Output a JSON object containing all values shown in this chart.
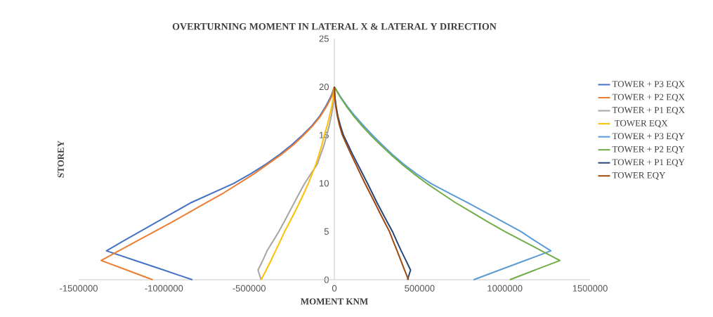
{
  "chart_data": {
    "type": "line",
    "title": "OVERTURNING MOMENT IN LATERAL X & LATERAL Y DIRECTION",
    "xlabel": "MOMENT KNM",
    "ylabel": "STOREY",
    "xlim": [
      -1500000,
      1500000
    ],
    "ylim": [
      0,
      25
    ],
    "xticks": [
      -1500000,
      -1000000,
      -500000,
      0,
      500000,
      1000000,
      1500000
    ],
    "yticks": [
      0,
      5,
      10,
      15,
      20,
      25
    ],
    "legend": "right",
    "series": [
      {
        "name": "TOWER + P3 EQX",
        "color": "#4472c4",
        "x": [
          -833000,
          -1000000,
          -1170000,
          -1337000,
          -1240000,
          -1140000,
          -1040000,
          -940000,
          -840000,
          -715000,
          -590000,
          -490000,
          -400000,
          -320000,
          -250000,
          -187000,
          -130000,
          -85000,
          -50000,
          -20000,
          0
        ],
        "values": [
          0,
          1,
          2,
          3,
          4,
          5,
          6,
          7,
          8,
          9,
          10,
          11,
          12,
          13,
          14,
          15,
          16,
          17,
          18,
          19,
          20
        ]
      },
      {
        "name": "TOWER + P2 EQX",
        "color": "#ed7d31",
        "x": [
          -1066000,
          -1217000,
          -1368000,
          -1265000,
          -1160000,
          -1055000,
          -950000,
          -850000,
          -750000,
          -650000,
          -560000,
          -470000,
          -390000,
          -310000,
          -240000,
          -180000,
          -125000,
          -80000,
          -45000,
          -15000,
          0
        ],
        "values": [
          0,
          1,
          2,
          3,
          4,
          5,
          6,
          7,
          8,
          9,
          10,
          11,
          12,
          13,
          14,
          15,
          16,
          17,
          18,
          19,
          20
        ]
      },
      {
        "name": "TOWER + P1 EQX",
        "color": "#a5a5a5",
        "x": [
          -430000,
          -448000,
          -420000,
          -395000,
          -360000,
          -326000,
          -295000,
          -265000,
          -235000,
          -205000,
          -174000,
          -137000,
          -100000,
          -80000,
          -60000,
          -45000,
          -30000,
          -18000,
          -8000,
          -3000,
          0
        ],
        "values": [
          0,
          1,
          2,
          3,
          4,
          5,
          6,
          7,
          8,
          9,
          10,
          11,
          12,
          13,
          14,
          15,
          16,
          17,
          18,
          19,
          20
        ]
      },
      {
        "name": " TOWER EQX",
        "color": "#ffc000",
        "x": [
          -430000,
          -400000,
          -372000,
          -345000,
          -318000,
          -292000,
          -262000,
          -233000,
          -205000,
          -178000,
          -153000,
          -130000,
          -108000,
          -90000,
          -73000,
          -59000,
          -42000,
          -28000,
          -15000,
          -5000,
          0
        ],
        "values": [
          0,
          1,
          2,
          3,
          4,
          5,
          6,
          7,
          8,
          9,
          10,
          11,
          12,
          13,
          14,
          15,
          16,
          17,
          18,
          19,
          20
        ]
      },
      {
        "name": "TOWER + P3 EQY",
        "color": "#5b9bd5",
        "x": [
          817000,
          968000,
          1120000,
          1270000,
          1180000,
          1094000,
          990000,
          885000,
          780000,
          672000,
          565000,
          480000,
          405000,
          340000,
          280000,
          223000,
          170000,
          120000,
          75000,
          35000,
          0
        ],
        "values": [
          0,
          1,
          2,
          3,
          4,
          5,
          6,
          7,
          8,
          9,
          10,
          11,
          12,
          13,
          14,
          15,
          16,
          17,
          18,
          19,
          20
        ]
      },
      {
        "name": "TOWER + P2 EQY",
        "color": "#70ad47",
        "x": [
          1029000,
          1176000,
          1323000,
          1215000,
          1108000,
          1000000,
          900000,
          805000,
          710000,
          625000,
          541000,
          465000,
          395000,
          330000,
          270000,
          212000,
          160000,
          112000,
          70000,
          32000,
          0
        ],
        "values": [
          0,
          1,
          2,
          3,
          4,
          5,
          6,
          7,
          8,
          9,
          10,
          11,
          12,
          13,
          14,
          15,
          16,
          17,
          18,
          19,
          20
        ]
      },
      {
        "name": "TOWER + P1 EQY",
        "color": "#264478",
        "x": [
          429000,
          447000,
          420000,
          392000,
          366000,
          341000,
          310000,
          280000,
          250000,
          222000,
          194000,
          165000,
          136000,
          107000,
          80000,
          53000,
          35000,
          20000,
          10000,
          3000,
          0
        ],
        "values": [
          0,
          1,
          2,
          3,
          4,
          5,
          6,
          7,
          8,
          9,
          10,
          11,
          12,
          13,
          14,
          15,
          16,
          17,
          18,
          19,
          20
        ]
      },
      {
        "name": "TOWER EQY",
        "color": "#9e480e",
        "x": [
          435000,
          412000,
          390000,
          368000,
          345000,
          323000,
          294000,
          265000,
          237000,
          208000,
          179000,
          152000,
          125000,
          98000,
          72000,
          47000,
          30000,
          17000,
          8000,
          2000,
          0
        ],
        "values": [
          0,
          1,
          2,
          3,
          4,
          5,
          6,
          7,
          8,
          9,
          10,
          11,
          12,
          13,
          14,
          15,
          16,
          17,
          18,
          19,
          20
        ]
      }
    ]
  }
}
